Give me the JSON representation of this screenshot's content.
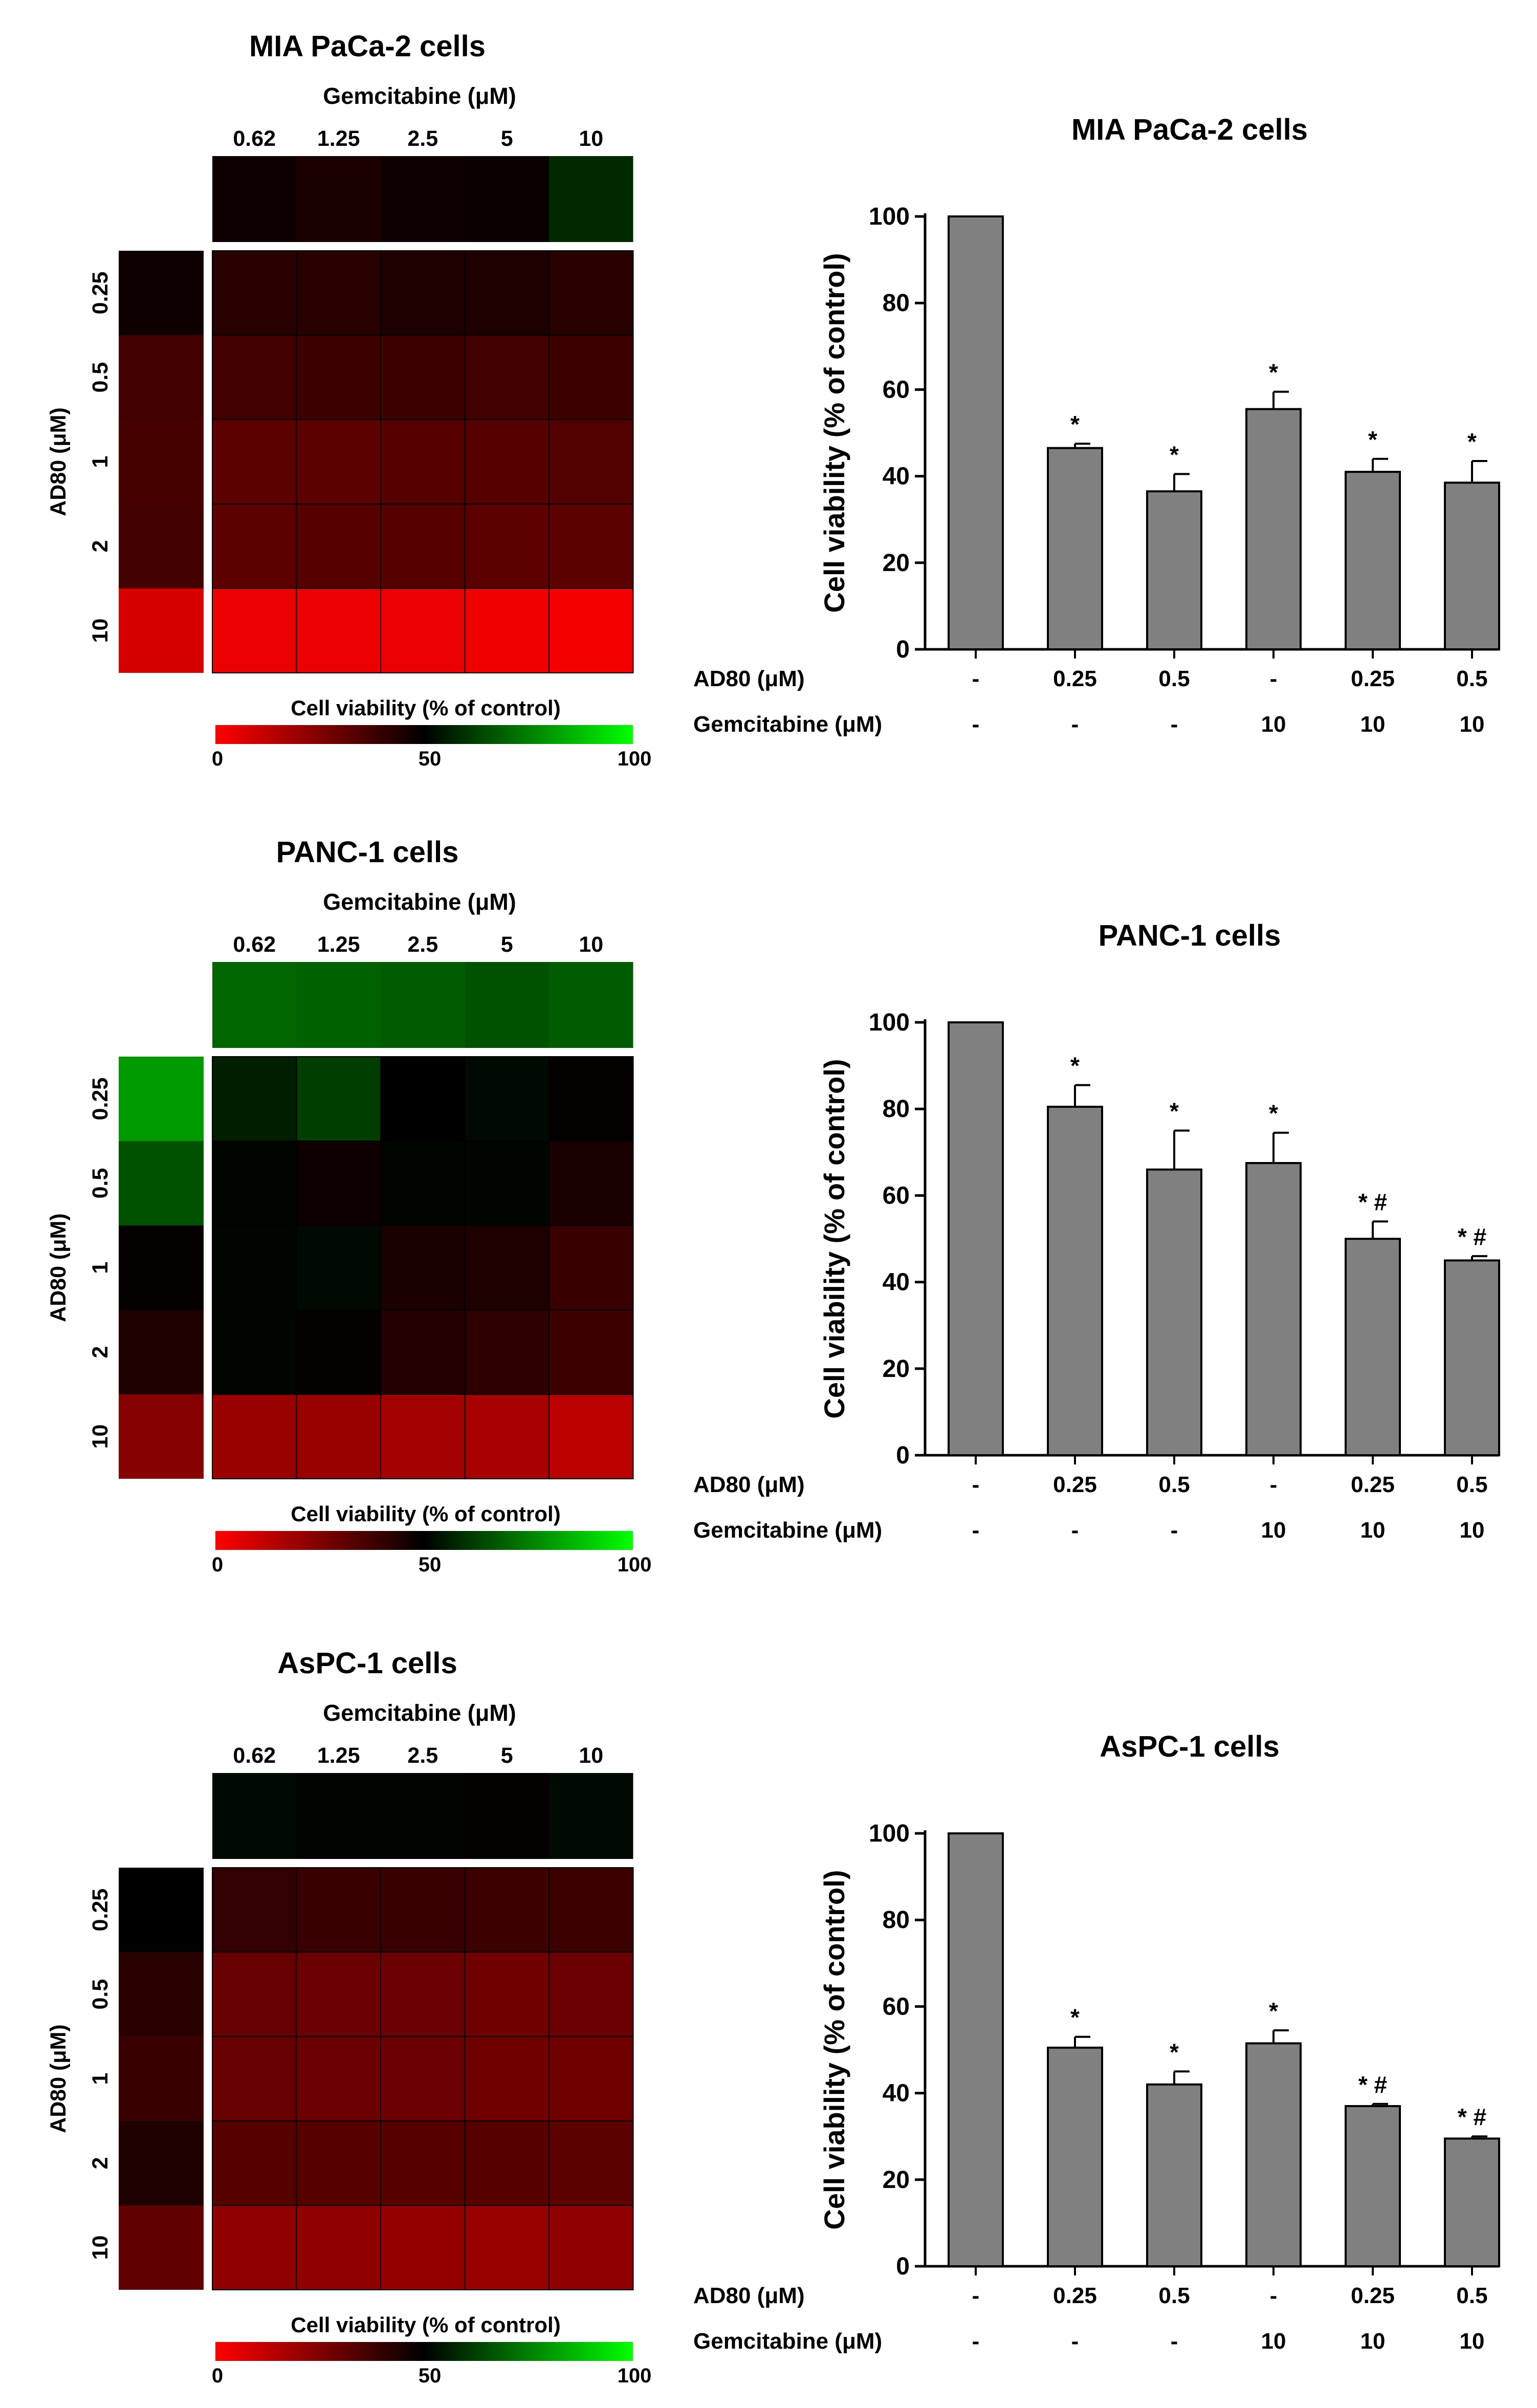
{
  "colors": {
    "low": "#ff0000",
    "mid": "#000000",
    "high": "#00ff00",
    "bar": "#808080"
  },
  "chart_data": [
    {
      "type": "heatmap",
      "title": "MIA PaCa-2 cells",
      "xlabel": "Gemcitabine (μM)",
      "ylabel": "AD80 (μM)",
      "x_labels": [
        "0.62",
        "1.25",
        "2.5",
        "5",
        "10"
      ],
      "y_labels": [
        "0.25",
        "0.5",
        "1",
        "2",
        "10"
      ],
      "gem_alone": [
        47,
        45,
        47,
        48,
        58
      ],
      "ad80_alone": [
        47,
        37,
        36,
        37,
        8
      ],
      "values": [
        [
          42,
          42,
          44,
          44,
          42
        ],
        [
          37,
          38,
          38,
          37,
          38
        ],
        [
          32,
          32,
          33,
          33,
          34
        ],
        [
          32,
          33,
          33,
          32,
          32
        ],
        [
          4,
          4,
          4,
          3,
          2
        ]
      ],
      "colorbar": {
        "label": "Cell viability (% of control)",
        "ticks": [
          "0",
          "50",
          "100"
        ],
        "range": [
          0,
          100
        ]
      }
    },
    {
      "type": "bar",
      "title": "MIA PaCa-2 cells",
      "ylabel": "Cell viability (% of control)",
      "ylim": [
        0,
        100
      ],
      "yticks": [
        "0",
        "20",
        "40",
        "60",
        "80",
        "100"
      ],
      "row_labels": [
        "AD80 (μM)",
        "Gemcitabine (μM)"
      ],
      "categories_ad80": [
        "-",
        "0.25",
        "0.5",
        "-",
        "0.25",
        "0.5"
      ],
      "categories_gem": [
        "-",
        "-",
        "-",
        "10",
        "10",
        "10"
      ],
      "values": [
        100,
        46.5,
        36.5,
        55.5,
        41,
        38.5
      ],
      "errors": [
        0,
        1,
        4,
        4,
        3,
        5
      ],
      "annotations": [
        "",
        "*",
        "*",
        "*",
        "*",
        "*"
      ]
    },
    {
      "type": "heatmap",
      "title": "PANC-1 cells",
      "xlabel": "Gemcitabine (μM)",
      "ylabel": "AD80 (μM)",
      "x_labels": [
        "0.62",
        "1.25",
        "2.5",
        "5",
        "10"
      ],
      "y_labels": [
        "0.25",
        "0.5",
        "1",
        "2",
        "10"
      ],
      "gem_alone": [
        70,
        69,
        68,
        66,
        68
      ],
      "ad80_alone": [
        80,
        66,
        49,
        44,
        24
      ],
      "values": [
        [
          56,
          62,
          50,
          52,
          49
        ],
        [
          51,
          47,
          51,
          51,
          45
        ],
        [
          51,
          52,
          45,
          44,
          39
        ],
        [
          51,
          49,
          43,
          41,
          38
        ],
        [
          20,
          20,
          18,
          17,
          14
        ]
      ],
      "colorbar": {
        "label": "Cell viability (% of control)",
        "ticks": [
          "0",
          "50",
          "100"
        ],
        "range": [
          0,
          100
        ]
      }
    },
    {
      "type": "bar",
      "title": "PANC-1 cells",
      "ylabel": "Cell viability (% of control)",
      "ylim": [
        0,
        100
      ],
      "yticks": [
        "0",
        "20",
        "40",
        "60",
        "80",
        "100"
      ],
      "row_labels": [
        "AD80 (μM)",
        "Gemcitabine (μM)"
      ],
      "categories_ad80": [
        "-",
        "0.25",
        "0.5",
        "-",
        "0.25",
        "0.5"
      ],
      "categories_gem": [
        "-",
        "-",
        "-",
        "10",
        "10",
        "10"
      ],
      "values": [
        100,
        80.5,
        66,
        67.5,
        50,
        45
      ],
      "errors": [
        0,
        5,
        9,
        7,
        4,
        1
      ],
      "annotations": [
        "",
        "*",
        "*",
        "*",
        "* #",
        "* #"
      ]
    },
    {
      "type": "heatmap",
      "title": "AsPC-1 cells",
      "xlabel": "Gemcitabine (μM)",
      "ylabel": "AD80 (μM)",
      "x_labels": [
        "0.62",
        "1.25",
        "2.5",
        "5",
        "10"
      ],
      "y_labels": [
        "0.25",
        "0.5",
        "1",
        "2",
        "10"
      ],
      "gem_alone": [
        52,
        51,
        51,
        49,
        52
      ],
      "ad80_alone": [
        50,
        42,
        39,
        44,
        31
      ],
      "values": [
        [
          40,
          39,
          39,
          38,
          38
        ],
        [
          30,
          29,
          29,
          28,
          29
        ],
        [
          30,
          29,
          29,
          28,
          28
        ],
        [
          33,
          33,
          33,
          33,
          32
        ],
        [
          22,
          22,
          21,
          20,
          22
        ]
      ],
      "colorbar": {
        "label": "Cell viability (% of control)",
        "ticks": [
          "0",
          "50",
          "100"
        ],
        "range": [
          0,
          100
        ]
      }
    },
    {
      "type": "bar",
      "title": "AsPC-1 cells",
      "ylabel": "Cell viability (% of control)",
      "ylim": [
        0,
        100
      ],
      "yticks": [
        "0",
        "20",
        "40",
        "60",
        "80",
        "100"
      ],
      "row_labels": [
        "AD80 (μM)",
        "Gemcitabine (μM)"
      ],
      "categories_ad80": [
        "-",
        "0.25",
        "0.5",
        "-",
        "0.25",
        "0.5"
      ],
      "categories_gem": [
        "-",
        "-",
        "-",
        "10",
        "10",
        "10"
      ],
      "values": [
        100,
        50.5,
        42,
        51.5,
        37,
        29.5
      ],
      "errors": [
        0,
        2.5,
        3,
        3,
        0.5,
        0.5
      ],
      "annotations": [
        "",
        "*",
        "*",
        "*",
        "* #",
        "* #"
      ]
    }
  ]
}
